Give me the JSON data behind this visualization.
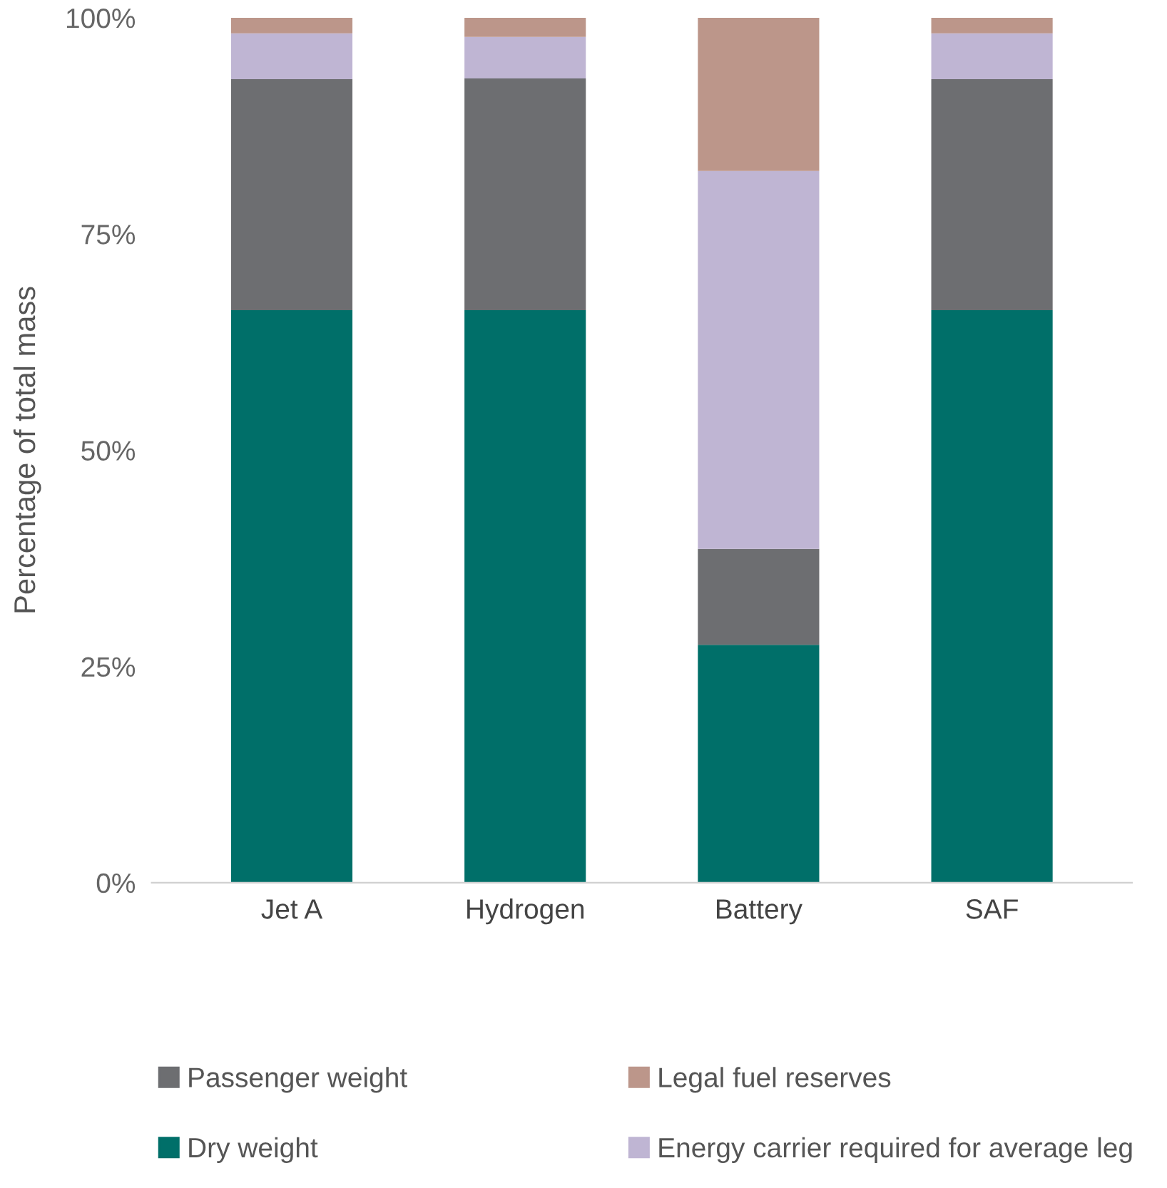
{
  "chart_data": {
    "type": "bar",
    "stacked": true,
    "ylabel": "Percentage of total mass",
    "categories": [
      "Jet A",
      "Hydrogen",
      "Battery",
      "SAF"
    ],
    "series": [
      {
        "name": "Dry weight",
        "color": "#006f69",
        "values": [
          66.2,
          66.2,
          27.5,
          66.2
        ]
      },
      {
        "name": "Passenger weight",
        "color": "#6d6e71",
        "values": [
          26.7,
          26.8,
          11.1,
          26.7
        ]
      },
      {
        "name": "Energy carrier required for average leg",
        "color": "#bfb5d3",
        "values": [
          5.3,
          4.8,
          43.7,
          5.3
        ]
      },
      {
        "name": "Legal fuel reserves",
        "color": "#bc968a",
        "values": [
          1.8,
          2.2,
          17.7,
          1.8
        ]
      }
    ],
    "ylim": [
      0,
      100
    ],
    "yticks": [
      {
        "value": 0,
        "label": "0%"
      },
      {
        "value": 25,
        "label": "25%"
      },
      {
        "value": 50,
        "label": "50%"
      },
      {
        "value": 75,
        "label": "75%"
      },
      {
        "value": 100,
        "label": "100%"
      }
    ],
    "grid": false,
    "legend": "bottom"
  }
}
